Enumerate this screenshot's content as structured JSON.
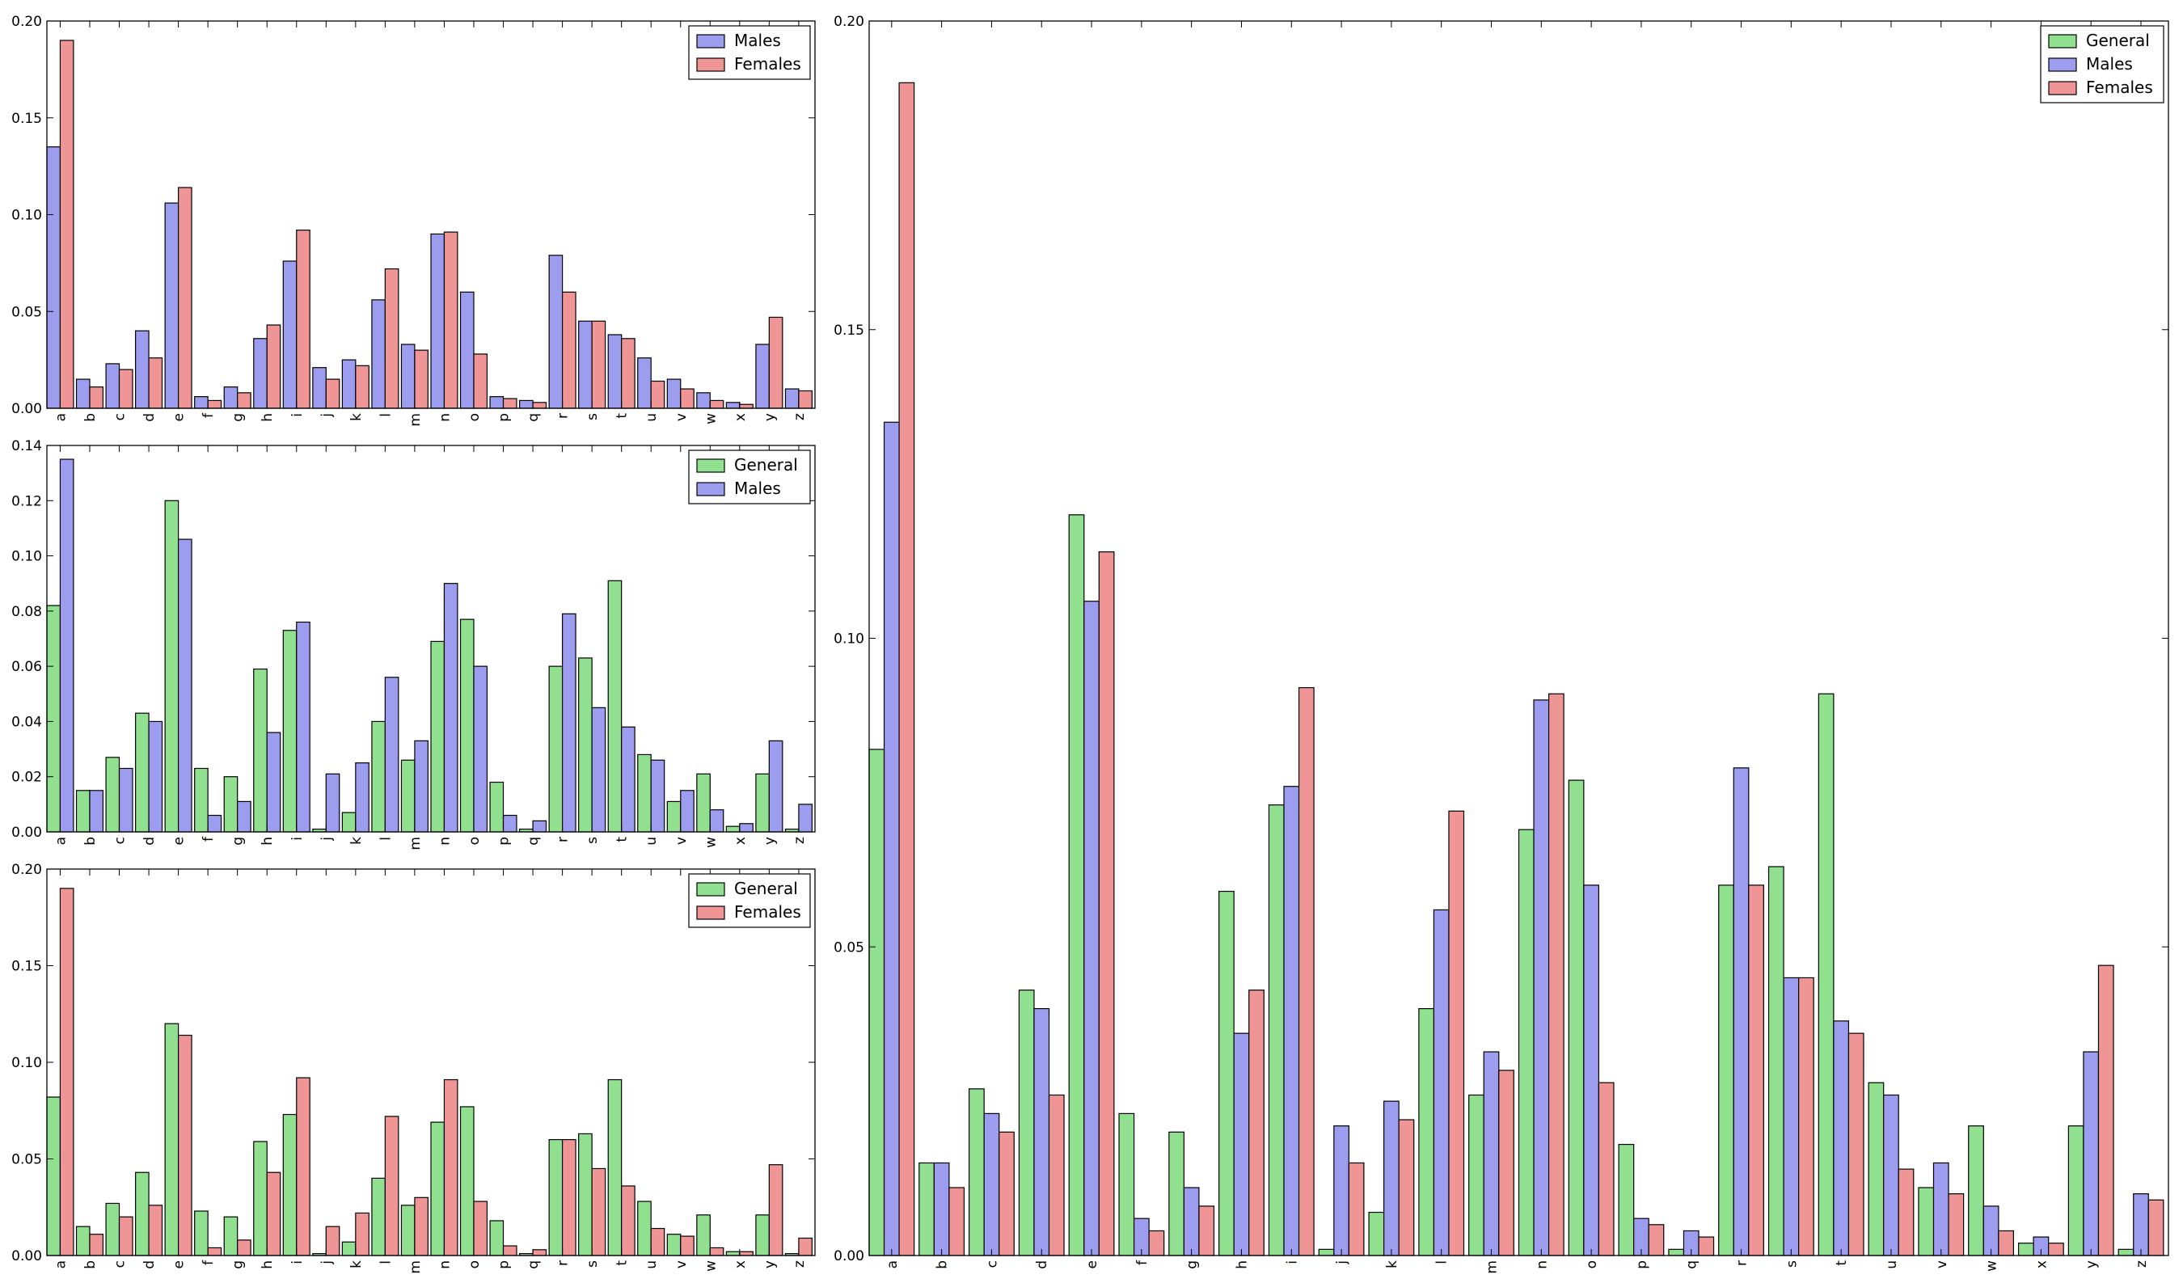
{
  "colors": {
    "general": "#90e090",
    "males": "#9d9def",
    "females": "#ef9595"
  },
  "chart_data": [
    {
      "type": "bar",
      "categories": [
        "a",
        "b",
        "c",
        "d",
        "e",
        "f",
        "g",
        "h",
        "i",
        "j",
        "k",
        "l",
        "m",
        "n",
        "o",
        "p",
        "q",
        "r",
        "s",
        "t",
        "u",
        "v",
        "w",
        "x",
        "y",
        "z"
      ],
      "ylim": [
        0,
        0.2
      ],
      "yticks": [
        "0.00",
        "0.05",
        "0.10",
        "0.15",
        "0.20"
      ],
      "legend": "top-right",
      "series": [
        {
          "name": "Males",
          "color": "#9d9def",
          "values": [
            0.135,
            0.015,
            0.023,
            0.04,
            0.106,
            0.006,
            0.011,
            0.036,
            0.076,
            0.021,
            0.025,
            0.056,
            0.033,
            0.09,
            0.06,
            0.006,
            0.004,
            0.079,
            0.045,
            0.038,
            0.026,
            0.015,
            0.008,
            0.003,
            0.033,
            0.01
          ]
        },
        {
          "name": "Females",
          "color": "#ef9595",
          "values": [
            0.19,
            0.011,
            0.02,
            0.026,
            0.114,
            0.004,
            0.008,
            0.043,
            0.092,
            0.015,
            0.022,
            0.072,
            0.03,
            0.091,
            0.028,
            0.005,
            0.003,
            0.06,
            0.045,
            0.036,
            0.014,
            0.01,
            0.004,
            0.002,
            0.047,
            0.009
          ]
        }
      ]
    },
    {
      "type": "bar",
      "categories": [
        "a",
        "b",
        "c",
        "d",
        "e",
        "f",
        "g",
        "h",
        "i",
        "j",
        "k",
        "l",
        "m",
        "n",
        "o",
        "p",
        "q",
        "r",
        "s",
        "t",
        "u",
        "v",
        "w",
        "x",
        "y",
        "z"
      ],
      "ylim": [
        0,
        0.14
      ],
      "yticks": [
        "0.00",
        "0.02",
        "0.04",
        "0.06",
        "0.08",
        "0.10",
        "0.12",
        "0.14"
      ],
      "legend": "top-right",
      "series": [
        {
          "name": "General",
          "color": "#90e090",
          "values": [
            0.082,
            0.015,
            0.027,
            0.043,
            0.12,
            0.023,
            0.02,
            0.059,
            0.073,
            0.001,
            0.007,
            0.04,
            0.026,
            0.069,
            0.077,
            0.018,
            0.001,
            0.06,
            0.063,
            0.091,
            0.028,
            0.011,
            0.021,
            0.002,
            0.021,
            0.001
          ]
        },
        {
          "name": "Males",
          "color": "#9d9def",
          "values": [
            0.135,
            0.015,
            0.023,
            0.04,
            0.106,
            0.006,
            0.011,
            0.036,
            0.076,
            0.021,
            0.025,
            0.056,
            0.033,
            0.09,
            0.06,
            0.006,
            0.004,
            0.079,
            0.045,
            0.038,
            0.026,
            0.015,
            0.008,
            0.003,
            0.033,
            0.01
          ]
        }
      ]
    },
    {
      "type": "bar",
      "categories": [
        "a",
        "b",
        "c",
        "d",
        "e",
        "f",
        "g",
        "h",
        "i",
        "j",
        "k",
        "l",
        "m",
        "n",
        "o",
        "p",
        "q",
        "r",
        "s",
        "t",
        "u",
        "v",
        "w",
        "x",
        "y",
        "z"
      ],
      "ylim": [
        0,
        0.2
      ],
      "yticks": [
        "0.00",
        "0.05",
        "0.10",
        "0.15",
        "0.20"
      ],
      "legend": "top-right",
      "series": [
        {
          "name": "General",
          "color": "#90e090",
          "values": [
            0.082,
            0.015,
            0.027,
            0.043,
            0.12,
            0.023,
            0.02,
            0.059,
            0.073,
            0.001,
            0.007,
            0.04,
            0.026,
            0.069,
            0.077,
            0.018,
            0.001,
            0.06,
            0.063,
            0.091,
            0.028,
            0.011,
            0.021,
            0.002,
            0.021,
            0.001
          ]
        },
        {
          "name": "Females",
          "color": "#ef9595",
          "values": [
            0.19,
            0.011,
            0.02,
            0.026,
            0.114,
            0.004,
            0.008,
            0.043,
            0.092,
            0.015,
            0.022,
            0.072,
            0.03,
            0.091,
            0.028,
            0.005,
            0.003,
            0.06,
            0.045,
            0.036,
            0.014,
            0.01,
            0.004,
            0.002,
            0.047,
            0.009
          ]
        }
      ]
    },
    {
      "type": "bar",
      "categories": [
        "a",
        "b",
        "c",
        "d",
        "e",
        "f",
        "g",
        "h",
        "i",
        "j",
        "k",
        "l",
        "m",
        "n",
        "o",
        "p",
        "q",
        "r",
        "s",
        "t",
        "u",
        "v",
        "w",
        "x",
        "y",
        "z"
      ],
      "ylim": [
        0,
        0.2
      ],
      "yticks": [
        "0.00",
        "0.05",
        "0.10",
        "0.15",
        "0.20"
      ],
      "legend": "top-right",
      "series": [
        {
          "name": "General",
          "color": "#90e090",
          "values": [
            0.082,
            0.015,
            0.027,
            0.043,
            0.12,
            0.023,
            0.02,
            0.059,
            0.073,
            0.001,
            0.007,
            0.04,
            0.026,
            0.069,
            0.077,
            0.018,
            0.001,
            0.06,
            0.063,
            0.091,
            0.028,
            0.011,
            0.021,
            0.002,
            0.021,
            0.001
          ]
        },
        {
          "name": "Males",
          "color": "#9d9def",
          "values": [
            0.135,
            0.015,
            0.023,
            0.04,
            0.106,
            0.006,
            0.011,
            0.036,
            0.076,
            0.021,
            0.025,
            0.056,
            0.033,
            0.09,
            0.06,
            0.006,
            0.004,
            0.079,
            0.045,
            0.038,
            0.026,
            0.015,
            0.008,
            0.003,
            0.033,
            0.01
          ]
        },
        {
          "name": "Females",
          "color": "#ef9595",
          "values": [
            0.19,
            0.011,
            0.02,
            0.026,
            0.114,
            0.004,
            0.008,
            0.043,
            0.092,
            0.015,
            0.022,
            0.072,
            0.03,
            0.091,
            0.028,
            0.005,
            0.003,
            0.06,
            0.045,
            0.036,
            0.014,
            0.01,
            0.004,
            0.002,
            0.047,
            0.009
          ]
        }
      ]
    }
  ]
}
